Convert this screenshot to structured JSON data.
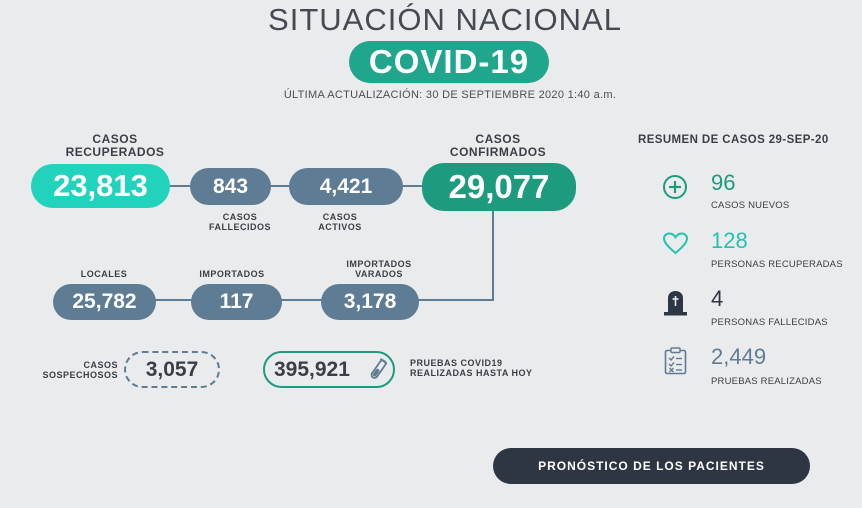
{
  "header": {
    "title": "SITUACIÓN NACIONAL",
    "badge": "COVID-19",
    "updated": "ÚLTIMA ACTUALIZACIÓN: 30 DE SEPTIEMBRE 2020 1:40 a.m."
  },
  "flow": {
    "recuperados": {
      "label_1": "CASOS",
      "label_2": "RECUPERADOS",
      "value": "23,813"
    },
    "fallecidos": {
      "label_1": "CASOS",
      "label_2": "FALLECIDOS",
      "value": "843"
    },
    "activos": {
      "label_1": "CASOS",
      "label_2": "ACTIVOS",
      "value": "4,421"
    },
    "confirmados": {
      "label_1": "CASOS",
      "label_2": "CONFIRMADOS",
      "value": "29,077"
    },
    "locales": {
      "label": "LOCALES",
      "value": "25,782"
    },
    "importados": {
      "label": "IMPORTADOS",
      "value": "117"
    },
    "varados": {
      "label_1": "IMPORTADOS",
      "label_2": "VARADOS",
      "value": "3,178"
    },
    "sospechosos": {
      "label_1": "CASOS",
      "label_2": "SOSPECHOSOS",
      "value": "3,057"
    },
    "pruebas": {
      "label_1": "PRUEBAS COVID19",
      "label_2": "REALIZADAS HASTA HOY",
      "value": "395,921"
    }
  },
  "summary": {
    "title": "RESUMEN DE CASOS 29-SEP-20",
    "items": [
      {
        "icon": "plus-circle-icon",
        "value": "96",
        "caption": "CASOS NUEVOS",
        "color": "#1c9b7e"
      },
      {
        "icon": "heart-icon",
        "value": "128",
        "caption": "PERSONAS RECUPERADAS",
        "color": "#21c4ad"
      },
      {
        "icon": "tombstone-icon",
        "value": "4",
        "caption": "PERSONAS FALLECIDAS",
        "color": "#2e3543"
      },
      {
        "icon": "clipboard-icon",
        "value": "2,449",
        "caption": "PRUEBAS REALIZADAS",
        "color": "#5e7d94"
      }
    ]
  },
  "cta": {
    "label": "PRONÓSTICO DE LOS PACIENTES"
  },
  "colors": {
    "background": "#eaebec",
    "green": "#1c9b7e",
    "aqua": "#21d3bc",
    "slate": "#5e7d94",
    "dark": "#2e3543"
  }
}
